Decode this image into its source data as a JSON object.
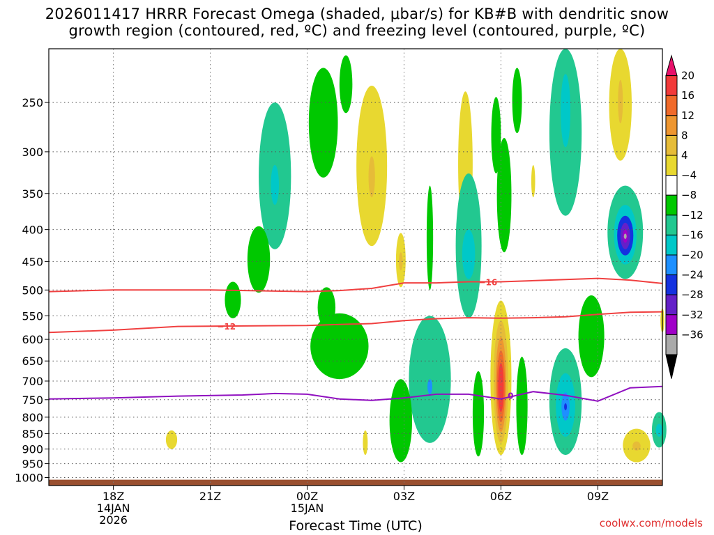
{
  "title_line1": "2026011417 HRRR Forecast Omega (shaded, μbar/s) for KB#B with dendritic snow",
  "title_line2": "growth region (contoured, red, ºC) and freezing level (contoured, purple, ºC)",
  "credit": "coolwx.com/models",
  "chart_data": {
    "type": "contour-heatmap",
    "xlabel": "Forecast Time (UTC)",
    "ylabel": "",
    "y_scale": "log-pressure (inverted)",
    "ylim": [
      1030,
      205
    ],
    "xlim_forecast_hour": [
      -1,
      18
    ],
    "x_ticks": [
      {
        "t": 1,
        "label": "18Z",
        "sub1": "14JAN",
        "sub2": "2026"
      },
      {
        "t": 4,
        "label": "21Z",
        "sub1": "",
        "sub2": ""
      },
      {
        "t": 7,
        "label": "00Z",
        "sub1": "15JAN",
        "sub2": ""
      },
      {
        "t": 10,
        "label": "03Z",
        "sub1": "",
        "sub2": ""
      },
      {
        "t": 13,
        "label": "06Z",
        "sub1": "",
        "sub2": ""
      },
      {
        "t": 16,
        "label": "09Z",
        "sub1": "",
        "sub2": ""
      }
    ],
    "y_ticks": [
      250,
      300,
      350,
      400,
      450,
      500,
      550,
      600,
      650,
      700,
      750,
      800,
      850,
      900,
      950,
      1000
    ],
    "colorbar": {
      "labels": [
        "20",
        "16",
        "12",
        "8",
        "4",
        "−4",
        "−8",
        "−12",
        "−16",
        "−20",
        "−24",
        "−28",
        "−32",
        "−36"
      ],
      "levels": [
        24,
        20,
        16,
        12,
        8,
        4,
        -4,
        -8,
        -12,
        -16,
        -20,
        -24,
        -28,
        -32,
        -36
      ],
      "colors": [
        "#e8106a",
        "#f23a3a",
        "#f06a2a",
        "#ee9630",
        "#e6bc38",
        "#e8d830",
        "#ffffff",
        "#00c800",
        "#22c890",
        "#00c8c8",
        "#1e90ff",
        "#1432e0",
        "#6420c8",
        "#a000c8",
        "#aaaaaa",
        "#000000"
      ]
    },
    "contours": [
      {
        "name": "-16",
        "color": "#f04040",
        "points": [
          [
            -1,
            503
          ],
          [
            1,
            500
          ],
          [
            4,
            500
          ],
          [
            7,
            503
          ],
          [
            8,
            501
          ],
          [
            9,
            497
          ],
          [
            10,
            487
          ],
          [
            11,
            487
          ],
          [
            12,
            485
          ],
          [
            13,
            485
          ],
          [
            14,
            483
          ],
          [
            15,
            481
          ],
          [
            16,
            479
          ],
          [
            17,
            482
          ],
          [
            18,
            488
          ]
        ]
      },
      {
        "name": "-12",
        "color": "#f04040",
        "points": [
          [
            -1,
            585
          ],
          [
            1,
            580
          ],
          [
            3,
            572
          ],
          [
            5,
            571
          ],
          [
            7,
            570
          ],
          [
            8,
            568
          ],
          [
            9,
            566
          ],
          [
            10,
            560
          ],
          [
            11,
            556
          ],
          [
            12,
            554
          ],
          [
            13,
            555
          ],
          [
            14,
            554
          ],
          [
            15,
            552
          ],
          [
            16,
            547
          ],
          [
            17,
            543
          ],
          [
            18,
            542
          ]
        ]
      },
      {
        "name": "0",
        "color": "#9010c0",
        "points": [
          [
            -1,
            748
          ],
          [
            1,
            745
          ],
          [
            3,
            740
          ],
          [
            5,
            737
          ],
          [
            6,
            733
          ],
          [
            7,
            735
          ],
          [
            8,
            748
          ],
          [
            9,
            752
          ],
          [
            10,
            745
          ],
          [
            11,
            735
          ],
          [
            12,
            735
          ],
          [
            13,
            748
          ],
          [
            14,
            728
          ],
          [
            15,
            738
          ],
          [
            16,
            754
          ],
          [
            17,
            718
          ],
          [
            18,
            714
          ]
        ]
      }
    ],
    "omega_features": [
      {
        "cx": 6.0,
        "p": 340,
        "w": 1.0,
        "h": 180,
        "value": -8,
        "cores": [
          {
            "value": -12,
            "w": 0.25,
            "h": 50
          }
        ]
      },
      {
        "cx": 5.5,
        "p": 450,
        "w": 0.7,
        "h": 110,
        "value": -6
      },
      {
        "cx": 4.7,
        "p": 520,
        "w": 0.5,
        "h": 70,
        "value": -5
      },
      {
        "cx": 7.5,
        "p": 275,
        "w": 0.9,
        "h": 110,
        "value": -6
      },
      {
        "cx": 8.2,
        "p": 235,
        "w": 0.4,
        "h": 50,
        "value": -5
      },
      {
        "cx": 9.0,
        "p": 330,
        "w": 0.95,
        "h": 190,
        "value": 6,
        "cores": [
          {
            "value": 9,
            "w": 0.2,
            "h": 50
          }
        ]
      },
      {
        "cx": 9.9,
        "p": 450,
        "w": 0.3,
        "h": 90,
        "value": 6,
        "cores": [
          {
            "value": 9,
            "w": 0.12,
            "h": 30
          }
        ]
      },
      {
        "cx": 11.9,
        "p": 325,
        "w": 0.45,
        "h": 170,
        "value": 6
      },
      {
        "cx": 10.8,
        "p": 420,
        "w": 0.2,
        "h": 160,
        "value": -6
      },
      {
        "cx": 12.0,
        "p": 440,
        "w": 0.8,
        "h": 230,
        "value": -8,
        "cores": [
          {
            "value": -12,
            "w": 0.4,
            "h": 80
          }
        ]
      },
      {
        "cx": 12.85,
        "p": 285,
        "w": 0.3,
        "h": 80,
        "value": -6
      },
      {
        "cx": 13.1,
        "p": 360,
        "w": 0.45,
        "h": 150,
        "value": -6
      },
      {
        "cx": 14.0,
        "p": 335,
        "w": 0.12,
        "h": 40,
        "value": 6
      },
      {
        "cx": 13.5,
        "p": 250,
        "w": 0.3,
        "h": 60,
        "value": -5
      },
      {
        "cx": 15.0,
        "p": 260,
        "w": 1.0,
        "h": 240,
        "value": -8,
        "cores": [
          {
            "value": -12,
            "w": 0.3,
            "h": 70
          }
        ]
      },
      {
        "cx": 16.7,
        "p": 250,
        "w": 0.7,
        "h": 120,
        "value": 6,
        "cores": [
          {
            "value": 9,
            "w": 0.15,
            "h": 40
          }
        ]
      },
      {
        "cx": 16.85,
        "p": 410,
        "w": 1.1,
        "h": 140,
        "value": -10,
        "cores": [
          {
            "value": -15,
            "w": 0.7,
            "h": 90
          },
          {
            "value": -21,
            "w": 0.5,
            "h": 60
          },
          {
            "value": -26,
            "w": 0.3,
            "h": 40
          },
          {
            "value": -30,
            "w": 0.15,
            "h": 20
          },
          {
            "value": -34,
            "w": 0.06,
            "h": 8
          }
        ]
      },
      {
        "cx": 8.0,
        "p": 620,
        "w": 1.8,
        "h": 150,
        "value": -7
      },
      {
        "cx": 7.6,
        "p": 535,
        "w": 0.55,
        "h": 80,
        "value": -5
      },
      {
        "cx": 10.8,
        "p": 715,
        "w": 1.3,
        "h": 330,
        "value": -8,
        "cores": [
          {
            "value": -11,
            "w": 0.8,
            "h": 200
          },
          {
            "value": -16,
            "w": 0.15,
            "h": 40
          }
        ]
      },
      {
        "cx": 9.9,
        "p": 820,
        "w": 0.7,
        "h": 250,
        "value": -7
      },
      {
        "cx": 13.0,
        "p": 720,
        "w": 0.65,
        "h": 400,
        "value": 6,
        "cores": [
          {
            "value": 10,
            "w": 0.45,
            "h": 320
          },
          {
            "value": 14,
            "w": 0.33,
            "h": 250
          },
          {
            "value": 18,
            "w": 0.25,
            "h": 190
          },
          {
            "value": 22,
            "w": 0.17,
            "h": 130
          }
        ]
      },
      {
        "cx": 12.3,
        "p": 800,
        "w": 0.35,
        "h": 250,
        "value": -7
      },
      {
        "cx": 13.65,
        "p": 780,
        "w": 0.35,
        "h": 280,
        "value": -7
      },
      {
        "cx": 15.0,
        "p": 770,
        "w": 1.0,
        "h": 300,
        "value": -8,
        "cores": [
          {
            "value": -12,
            "w": 0.6,
            "h": 180
          },
          {
            "value": -16,
            "w": 0.25,
            "h": 80
          },
          {
            "value": -21,
            "w": 0.06,
            "h": 20
          }
        ]
      },
      {
        "cx": 15.8,
        "p": 600,
        "w": 0.8,
        "h": 180,
        "value": -6
      },
      {
        "cx": 17.2,
        "p": 890,
        "w": 0.85,
        "h": 110,
        "value": 6,
        "cores": [
          {
            "value": 9,
            "w": 0.25,
            "h": 30
          }
        ]
      },
      {
        "cx": 17.9,
        "p": 840,
        "w": 0.45,
        "h": 110,
        "value": -8,
        "cores": [
          {
            "value": -12,
            "w": 0.2,
            "h": 40
          }
        ]
      },
      {
        "cx": 18.0,
        "p": 560,
        "w": 0.12,
        "h": 50,
        "value": 6
      },
      {
        "cx": 2.8,
        "p": 870,
        "w": 0.35,
        "h": 60,
        "value": 6
      },
      {
        "cx": 8.8,
        "p": 880,
        "w": 0.15,
        "h": 80,
        "value": 6
      }
    ]
  }
}
